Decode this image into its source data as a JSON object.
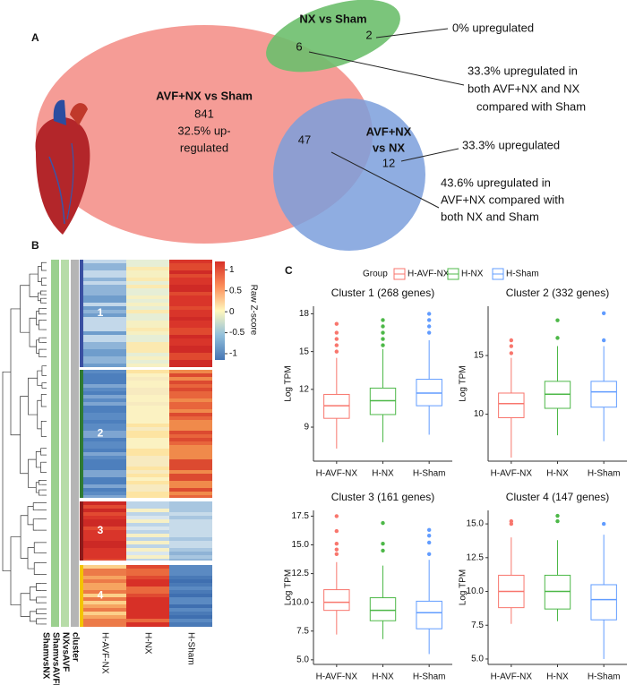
{
  "panel_labels": [
    "A",
    "B",
    "C"
  ],
  "venn": {
    "sets": [
      {
        "label": "AVF+NX vs Sham",
        "lines": [
          "841",
          "32.5% up-",
          "regulated"
        ]
      },
      {
        "label": "NX vs Sham",
        "lines": [
          "2"
        ]
      },
      {
        "label_lines": [
          "AVF+NX",
          "vs NX"
        ],
        "lines": [
          "12"
        ]
      }
    ],
    "overlaps": [
      "6",
      "47"
    ],
    "notes": [
      [
        "0% upregulated"
      ],
      [
        "33.3% upregulated in",
        "both AVF+NX and NX",
        "compared with Sham"
      ],
      [
        "33.3% upregulated"
      ],
      [
        "43.6% upregulated in",
        "AVF+NX compared with",
        "both NX and Sham"
      ]
    ]
  },
  "heatmap": {
    "columns": [
      "H-AVF-NX",
      "H-NX",
      "H-Sham"
    ],
    "annotations": [
      "ShamvsNX",
      "ShamvsAVFNX",
      "NXvsAVF",
      "cluster"
    ],
    "clusters": [
      "1",
      "2",
      "3",
      "4"
    ],
    "colorbar_title": "Raw Z-score",
    "colorbar_lim": [
      -1.15,
      1.2
    ],
    "colorbar_ticks": [
      1,
      0.5,
      0,
      -0.5,
      -1
    ]
  },
  "legend": {
    "title": "Group",
    "entries": [
      "H-AVF-NX",
      "H-NX",
      "H-Sham"
    ],
    "colors": [
      "#f8766d",
      "#4db848",
      "#619cff"
    ]
  },
  "chart_data": [
    {
      "type": "box",
      "title": "Cluster 1 (268 genes)",
      "ylabel": "Log TPM",
      "categories": [
        "H-AVF-NX",
        "H-NX",
        "H-Sham"
      ],
      "colors": [
        "#f8766d",
        "#4db848",
        "#619cff"
      ],
      "ylim": [
        6.3,
        18.6
      ],
      "yticks": [
        9,
        12,
        15,
        18
      ],
      "boxes": [
        {
          "whislo": 7.3,
          "q1": 9.7,
          "med": 10.7,
          "q3": 11.6,
          "whishi": 14.5,
          "fliers": [
            15,
            15.5,
            16,
            16.5,
            17.2
          ]
        },
        {
          "whislo": 7.8,
          "q1": 10,
          "med": 11.1,
          "q3": 12.1,
          "whishi": 15.2,
          "fliers": [
            15.5,
            16,
            16.5,
            17,
            17.5
          ]
        },
        {
          "whislo": 8.4,
          "q1": 10.7,
          "med": 11.7,
          "q3": 12.8,
          "whishi": 15.9,
          "fliers": [
            16.5,
            17,
            17.5,
            18
          ]
        }
      ]
    },
    {
      "type": "box",
      "title": "Cluster 2 (332 genes)",
      "ylabel": "Log TPM",
      "categories": [
        "H-AVF-NX",
        "H-NX",
        "H-Sham"
      ],
      "colors": [
        "#f8766d",
        "#4db848",
        "#619cff"
      ],
      "ylim": [
        6,
        19.2
      ],
      "yticks": [
        10,
        15
      ],
      "boxes": [
        {
          "whislo": 6.3,
          "q1": 9.7,
          "med": 10.9,
          "q3": 11.8,
          "whishi": 14.8,
          "fliers": [
            15.2,
            15.8,
            16.3
          ]
        },
        {
          "whislo": 8.2,
          "q1": 10.5,
          "med": 11.7,
          "q3": 12.8,
          "whishi": 15.8,
          "fliers": [
            16.5,
            18
          ]
        },
        {
          "whislo": 7.7,
          "q1": 10.6,
          "med": 11.9,
          "q3": 12.8,
          "whishi": 15.8,
          "fliers": [
            16.3,
            18.6
          ]
        }
      ]
    },
    {
      "type": "box",
      "title": "Cluster 3 (161 genes)",
      "ylabel": "Log TPM",
      "categories": [
        "H-AVF-NX",
        "H-NX",
        "H-Sham"
      ],
      "colors": [
        "#f8766d",
        "#4db848",
        "#619cff"
      ],
      "ylim": [
        4.6,
        18
      ],
      "yticks": [
        {
          "value": 5,
          "label": "5.0"
        },
        {
          "value": 7.5,
          "label": "7.5"
        },
        {
          "value": 10,
          "label": "10.0"
        },
        {
          "value": 12.5,
          "label": "12.5"
        },
        {
          "value": 15,
          "label": "15.0"
        },
        {
          "value": 17.5,
          "label": "17.5"
        }
      ],
      "boxes": [
        {
          "whislo": 7.2,
          "q1": 9.3,
          "med": 10,
          "q3": 11.1,
          "whishi": 13.5,
          "fliers": [
            14.2,
            14.6,
            15.1,
            16.2,
            17.5
          ]
        },
        {
          "whislo": 6.8,
          "q1": 8.4,
          "med": 9.3,
          "q3": 10.4,
          "whishi": 13.2,
          "fliers": [
            14.5,
            15.1,
            16.9
          ]
        },
        {
          "whislo": 5.5,
          "q1": 7.7,
          "med": 9.1,
          "q3": 10.1,
          "whishi": 13.7,
          "fliers": [
            14.2,
            15.2,
            15.8,
            16.3
          ]
        }
      ]
    },
    {
      "type": "box",
      "title": "Cluster 4 (147 genes)",
      "ylabel": "Log TPM",
      "categories": [
        "H-AVF-NX",
        "H-NX",
        "H-Sham"
      ],
      "colors": [
        "#f8766d",
        "#4db848",
        "#619cff"
      ],
      "ylim": [
        4.6,
        16
      ],
      "yticks": [
        {
          "value": 5,
          "label": "5.0"
        },
        {
          "value": 7.5,
          "label": "7.5"
        },
        {
          "value": 10,
          "label": "10.0"
        },
        {
          "value": 12.5,
          "label": "12.5"
        },
        {
          "value": 15,
          "label": "15.0"
        }
      ],
      "boxes": [
        {
          "whislo": 7.6,
          "q1": 8.8,
          "med": 10,
          "q3": 11.2,
          "whishi": 14,
          "fliers": [
            15,
            15.2
          ]
        },
        {
          "whislo": 7.8,
          "q1": 8.7,
          "med": 10,
          "q3": 11.2,
          "whishi": 13.8,
          "fliers": [
            15.2,
            15.6
          ]
        },
        {
          "whislo": 5,
          "q1": 7.9,
          "med": 9.4,
          "q3": 10.5,
          "whishi": 14.2,
          "fliers": [
            15
          ]
        }
      ]
    }
  ]
}
